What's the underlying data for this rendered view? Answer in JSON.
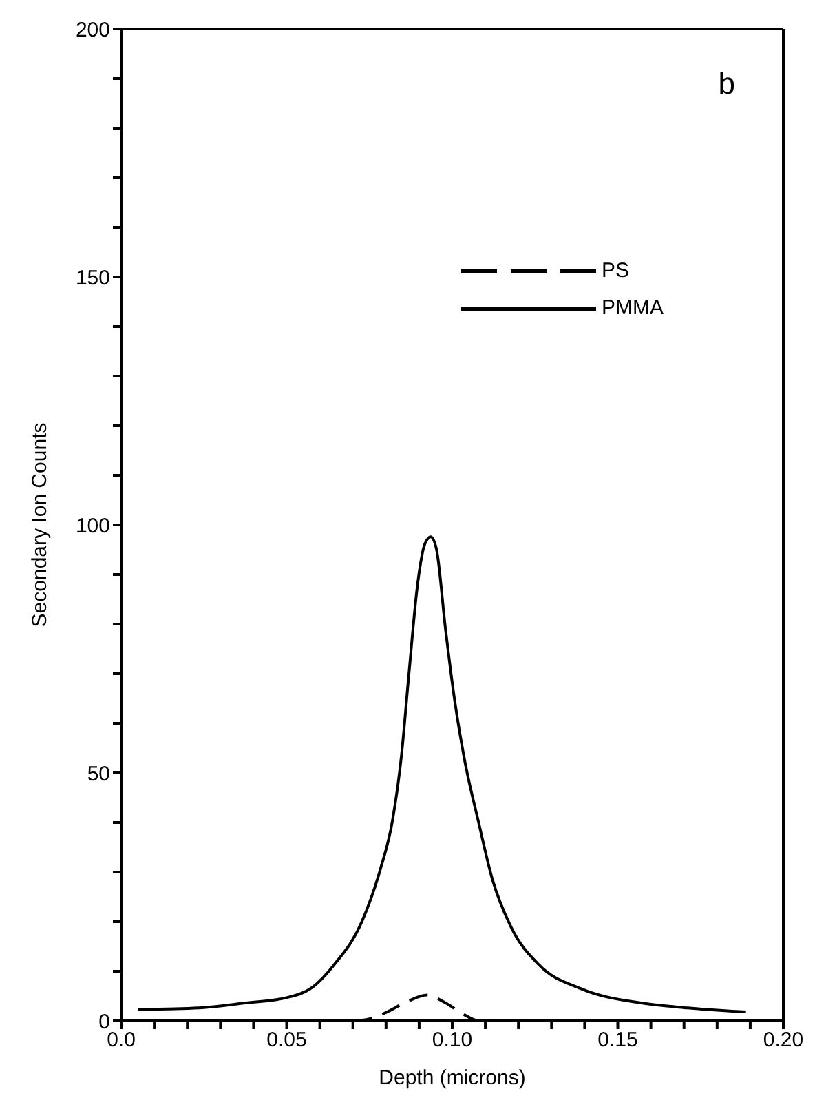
{
  "chart_data": {
    "type": "line",
    "xlabel": "Depth (microns)",
    "ylabel": "Secondary Ion Counts",
    "annotations": [
      "b"
    ],
    "xlim": [
      0,
      0.2
    ],
    "ylim": [
      0,
      200
    ],
    "xticks": [
      "0.0",
      {
        "value": 0.01,
        "label": null
      },
      {
        "value": 0.02,
        "label": null
      },
      {
        "value": 0.03,
        "label": null
      },
      {
        "value": 0.04,
        "label": null
      },
      {
        "value": 0.05,
        "label": "0.05"
      },
      {
        "value": 0.06,
        "label": null
      },
      {
        "value": 0.07,
        "label": null
      },
      {
        "value": 0.08,
        "label": null
      },
      {
        "value": 0.09,
        "label": null
      },
      {
        "value": 0.1,
        "label": "0.10"
      },
      {
        "value": 0.11,
        "label": null
      },
      {
        "value": 0.12,
        "label": null
      },
      {
        "value": 0.13,
        "label": null
      },
      {
        "value": 0.14,
        "label": null
      },
      {
        "value": 0.15,
        "label": "0.15"
      },
      {
        "value": 0.16,
        "label": null
      },
      {
        "value": 0.17,
        "label": null
      },
      {
        "value": 0.18,
        "label": null
      },
      {
        "value": 0.19,
        "label": null
      },
      {
        "value": 0.2,
        "label": "0.20"
      }
    ],
    "yticks": [
      0,
      {
        "value": 10,
        "label": null
      },
      {
        "value": 20,
        "label": null
      },
      {
        "value": 30,
        "label": null
      },
      {
        "value": 40,
        "label": null
      },
      50,
      {
        "value": 60,
        "label": null
      },
      {
        "value": 70,
        "label": null
      },
      {
        "value": 80,
        "label": null
      },
      {
        "value": 90,
        "label": null
      },
      100,
      {
        "value": 110,
        "label": null
      },
      {
        "value": 120,
        "label": null
      },
      {
        "value": 130,
        "label": null
      },
      {
        "value": 140,
        "label": null
      },
      150,
      {
        "value": 160,
        "label": null
      },
      {
        "value": 170,
        "label": null
      },
      {
        "value": 180,
        "label": null
      },
      {
        "value": 190,
        "label": null
      },
      200
    ],
    "grid": false,
    "legend": "top right",
    "marker": "none",
    "series": [
      {
        "name": "PS",
        "color": "#000000",
        "line_style": "dashed",
        "x": [
          0.07,
          0.075,
          0.0797,
          0.0868,
          0.0924,
          0.098,
          0.1037,
          0.108,
          0.115
        ],
        "values": [
          0,
          0.4,
          1.6,
          4.0,
          5.2,
          3.6,
          1.2,
          0,
          0
        ]
      },
      {
        "name": "PMMA",
        "color": "#000000",
        "line_style": "solid",
        "x": [
          0.005,
          0.0235,
          0.0376,
          0.0502,
          0.0572,
          0.0643,
          0.0727,
          0.0783,
          0.0819,
          0.0847,
          0.0868,
          0.0896,
          0.0917,
          0.0935,
          0.0952,
          0.098,
          0.1008,
          0.1037,
          0.1079,
          0.1121,
          0.1177,
          0.1262,
          0.1388,
          0.1571,
          0.1712,
          0.1887
        ],
        "values": [
          2.3,
          2.6,
          3.6,
          4.7,
          6.5,
          11.3,
          20,
          30.6,
          40.2,
          53.7,
          69.1,
          88.4,
          96.1,
          97.6,
          95.2,
          78.8,
          64.3,
          52.7,
          40.2,
          28.6,
          19,
          11.3,
          6.5,
          3.6,
          2.6,
          1.8
        ]
      }
    ]
  }
}
